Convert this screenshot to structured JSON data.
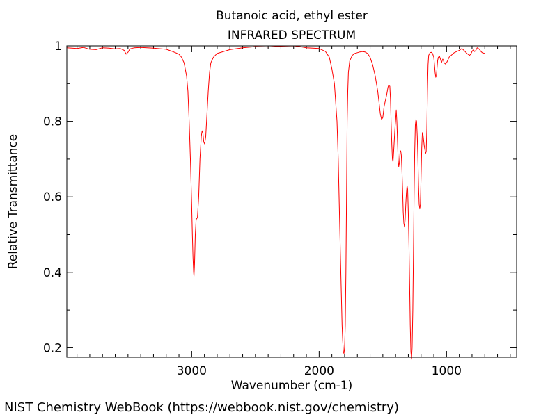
{
  "chart_data": {
    "type": "line",
    "title": "Butanoic acid, ethyl ester",
    "subtitle": "INFRARED SPECTRUM",
    "xlabel": "Wavenumber (cm-1)",
    "ylabel": "Relative Transmittance",
    "xlim": [
      3980,
      450
    ],
    "ylim": [
      0.175,
      1.0
    ],
    "x_reversed": true,
    "x_ticks": [
      3000,
      2000,
      1000
    ],
    "y_ticks": [
      0.2,
      0.4,
      0.6,
      0.8,
      1
    ],
    "grid": false,
    "line_color": "#ff0000",
    "series": [
      {
        "points": [
          [
            3980,
            0.995
          ],
          [
            3900,
            0.993
          ],
          [
            3850,
            0.996
          ],
          [
            3800,
            0.991
          ],
          [
            3750,
            0.99
          ],
          [
            3700,
            0.995
          ],
          [
            3650,
            0.994
          ],
          [
            3600,
            0.992
          ],
          [
            3560,
            0.993
          ],
          [
            3530,
            0.988
          ],
          [
            3515,
            0.978
          ],
          [
            3500,
            0.983
          ],
          [
            3485,
            0.992
          ],
          [
            3450,
            0.995
          ],
          [
            3400,
            0.996
          ],
          [
            3300,
            0.994
          ],
          [
            3200,
            0.991
          ],
          [
            3150,
            0.985
          ],
          [
            3100,
            0.978
          ],
          [
            3080,
            0.97
          ],
          [
            3060,
            0.955
          ],
          [
            3040,
            0.92
          ],
          [
            3030,
            0.88
          ],
          [
            3020,
            0.8
          ],
          [
            3010,
            0.7
          ],
          [
            3000,
            0.58
          ],
          [
            2995,
            0.5
          ],
          [
            2990,
            0.44
          ],
          [
            2985,
            0.4
          ],
          [
            2982,
            0.39
          ],
          [
            2978,
            0.42
          ],
          [
            2972,
            0.5
          ],
          [
            2965,
            0.54
          ],
          [
            2955,
            0.545
          ],
          [
            2945,
            0.6
          ],
          [
            2935,
            0.7
          ],
          [
            2925,
            0.76
          ],
          [
            2918,
            0.775
          ],
          [
            2912,
            0.77
          ],
          [
            2905,
            0.745
          ],
          [
            2898,
            0.74
          ],
          [
            2890,
            0.76
          ],
          [
            2880,
            0.82
          ],
          [
            2870,
            0.88
          ],
          [
            2860,
            0.93
          ],
          [
            2850,
            0.955
          ],
          [
            2830,
            0.97
          ],
          [
            2800,
            0.98
          ],
          [
            2750,
            0.985
          ],
          [
            2700,
            0.99
          ],
          [
            2600,
            0.995
          ],
          [
            2500,
            0.998
          ],
          [
            2400,
            0.997
          ],
          [
            2300,
            0.999
          ],
          [
            2200,
            1.0
          ],
          [
            2150,
            0.998
          ],
          [
            2100,
            0.995
          ],
          [
            2000,
            0.993
          ],
          [
            1950,
            0.985
          ],
          [
            1920,
            0.97
          ],
          [
            1900,
            0.94
          ],
          [
            1880,
            0.9
          ],
          [
            1860,
            0.8
          ],
          [
            1850,
            0.7
          ],
          [
            1840,
            0.55
          ],
          [
            1830,
            0.4
          ],
          [
            1820,
            0.26
          ],
          [
            1815,
            0.22
          ],
          [
            1810,
            0.19
          ],
          [
            1805,
            0.185
          ],
          [
            1800,
            0.2
          ],
          [
            1795,
            0.26
          ],
          [
            1790,
            0.4
          ],
          [
            1785,
            0.6
          ],
          [
            1780,
            0.8
          ],
          [
            1775,
            0.88
          ],
          [
            1770,
            0.93
          ],
          [
            1760,
            0.96
          ],
          [
            1740,
            0.975
          ],
          [
            1720,
            0.98
          ],
          [
            1700,
            0.982
          ],
          [
            1680,
            0.984
          ],
          [
            1660,
            0.985
          ],
          [
            1640,
            0.984
          ],
          [
            1620,
            0.98
          ],
          [
            1600,
            0.97
          ],
          [
            1580,
            0.95
          ],
          [
            1560,
            0.92
          ],
          [
            1540,
            0.88
          ],
          [
            1530,
            0.85
          ],
          [
            1520,
            0.82
          ],
          [
            1510,
            0.805
          ],
          [
            1500,
            0.81
          ],
          [
            1490,
            0.84
          ],
          [
            1480,
            0.855
          ],
          [
            1470,
            0.87
          ],
          [
            1460,
            0.89
          ],
          [
            1455,
            0.895
          ],
          [
            1445,
            0.893
          ],
          [
            1440,
            0.86
          ],
          [
            1435,
            0.8
          ],
          [
            1430,
            0.74
          ],
          [
            1425,
            0.7
          ],
          [
            1420,
            0.693
          ],
          [
            1415,
            0.72
          ],
          [
            1410,
            0.75
          ],
          [
            1405,
            0.78
          ],
          [
            1400,
            0.8
          ],
          [
            1395,
            0.83
          ],
          [
            1390,
            0.8
          ],
          [
            1385,
            0.75
          ],
          [
            1380,
            0.7
          ],
          [
            1375,
            0.68
          ],
          [
            1370,
            0.69
          ],
          [
            1365,
            0.72
          ],
          [
            1360,
            0.722
          ],
          [
            1355,
            0.71
          ],
          [
            1350,
            0.67
          ],
          [
            1345,
            0.62
          ],
          [
            1340,
            0.56
          ],
          [
            1335,
            0.53
          ],
          [
            1330,
            0.52
          ],
          [
            1325,
            0.54
          ],
          [
            1320,
            0.58
          ],
          [
            1315,
            0.61
          ],
          [
            1310,
            0.63
          ],
          [
            1305,
            0.62
          ],
          [
            1300,
            0.56
          ],
          [
            1295,
            0.47
          ],
          [
            1290,
            0.37
          ],
          [
            1285,
            0.26
          ],
          [
            1280,
            0.19
          ],
          [
            1275,
            0.17
          ],
          [
            1270,
            0.2
          ],
          [
            1265,
            0.3
          ],
          [
            1260,
            0.45
          ],
          [
            1255,
            0.6
          ],
          [
            1250,
            0.72
          ],
          [
            1245,
            0.79
          ],
          [
            1240,
            0.805
          ],
          [
            1235,
            0.8
          ],
          [
            1230,
            0.76
          ],
          [
            1225,
            0.7
          ],
          [
            1220,
            0.63
          ],
          [
            1215,
            0.58
          ],
          [
            1210,
            0.568
          ],
          [
            1205,
            0.58
          ],
          [
            1200,
            0.65
          ],
          [
            1195,
            0.73
          ],
          [
            1190,
            0.77
          ],
          [
            1185,
            0.765
          ],
          [
            1180,
            0.75
          ],
          [
            1175,
            0.735
          ],
          [
            1170,
            0.725
          ],
          [
            1165,
            0.715
          ],
          [
            1160,
            0.72
          ],
          [
            1155,
            0.78
          ],
          [
            1150,
            0.88
          ],
          [
            1145,
            0.95
          ],
          [
            1140,
            0.975
          ],
          [
            1130,
            0.982
          ],
          [
            1120,
            0.983
          ],
          [
            1110,
            0.98
          ],
          [
            1100,
            0.97
          ],
          [
            1095,
            0.95
          ],
          [
            1090,
            0.93
          ],
          [
            1085,
            0.917
          ],
          [
            1080,
            0.92
          ],
          [
            1075,
            0.94
          ],
          [
            1070,
            0.96
          ],
          [
            1065,
            0.97
          ],
          [
            1055,
            0.972
          ],
          [
            1045,
            0.962
          ],
          [
            1040,
            0.955
          ],
          [
            1035,
            0.96
          ],
          [
            1030,
            0.965
          ],
          [
            1025,
            0.962
          ],
          [
            1020,
            0.956
          ],
          [
            1010,
            0.952
          ],
          [
            1000,
            0.955
          ],
          [
            990,
            0.962
          ],
          [
            980,
            0.97
          ],
          [
            960,
            0.976
          ],
          [
            940,
            0.982
          ],
          [
            920,
            0.985
          ],
          [
            900,
            0.988
          ],
          [
            880,
            0.993
          ],
          [
            860,
            0.987
          ],
          [
            840,
            0.98
          ],
          [
            820,
            0.975
          ],
          [
            810,
            0.978
          ],
          [
            800,
            0.985
          ],
          [
            790,
            0.99
          ],
          [
            780,
            0.985
          ],
          [
            770,
            0.988
          ],
          [
            760,
            0.995
          ],
          [
            750,
            0.993
          ],
          [
            740,
            0.99
          ],
          [
            730,
            0.985
          ],
          [
            720,
            0.982
          ],
          [
            700,
            0.98
          ]
        ]
      }
    ]
  },
  "footer": "NIST Chemistry WebBook (https://webbook.nist.gov/chemistry)"
}
